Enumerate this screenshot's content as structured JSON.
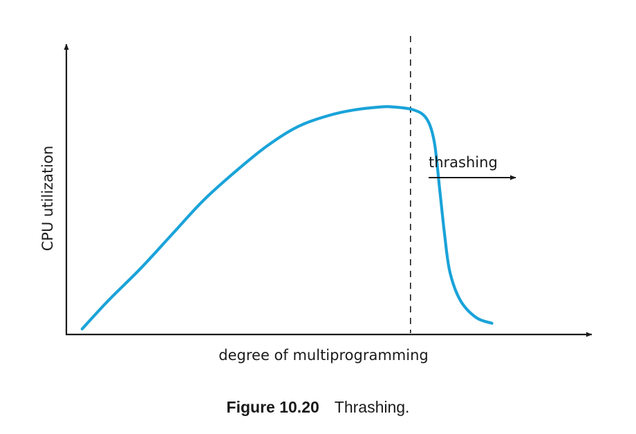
{
  "chart_data": {
    "type": "line",
    "xlabel": "degree of multiprogramming",
    "ylabel": "CPU utilization",
    "grid": false,
    "series": [
      {
        "color": "#1aa3d9",
        "points": [
          [
            0.03,
            0.0
          ],
          [
            0.08,
            0.1
          ],
          [
            0.14,
            0.21
          ],
          [
            0.2,
            0.33
          ],
          [
            0.26,
            0.45
          ],
          [
            0.32,
            0.55
          ],
          [
            0.38,
            0.64
          ],
          [
            0.44,
            0.71
          ],
          [
            0.5,
            0.75
          ],
          [
            0.55,
            0.77
          ],
          [
            0.6,
            0.78
          ],
          [
            0.62,
            0.78
          ],
          [
            0.66,
            0.77
          ],
          [
            0.685,
            0.74
          ],
          [
            0.7,
            0.66
          ],
          [
            0.71,
            0.5
          ],
          [
            0.72,
            0.33
          ],
          [
            0.73,
            0.2
          ],
          [
            0.75,
            0.1
          ],
          [
            0.78,
            0.04
          ],
          [
            0.81,
            0.02
          ]
        ]
      }
    ],
    "threshold_x": 0.655,
    "annotation": {
      "text": "thrashing"
    }
  },
  "caption": {
    "figure_number": "Figure 10.20",
    "title": "Thrashing."
  }
}
